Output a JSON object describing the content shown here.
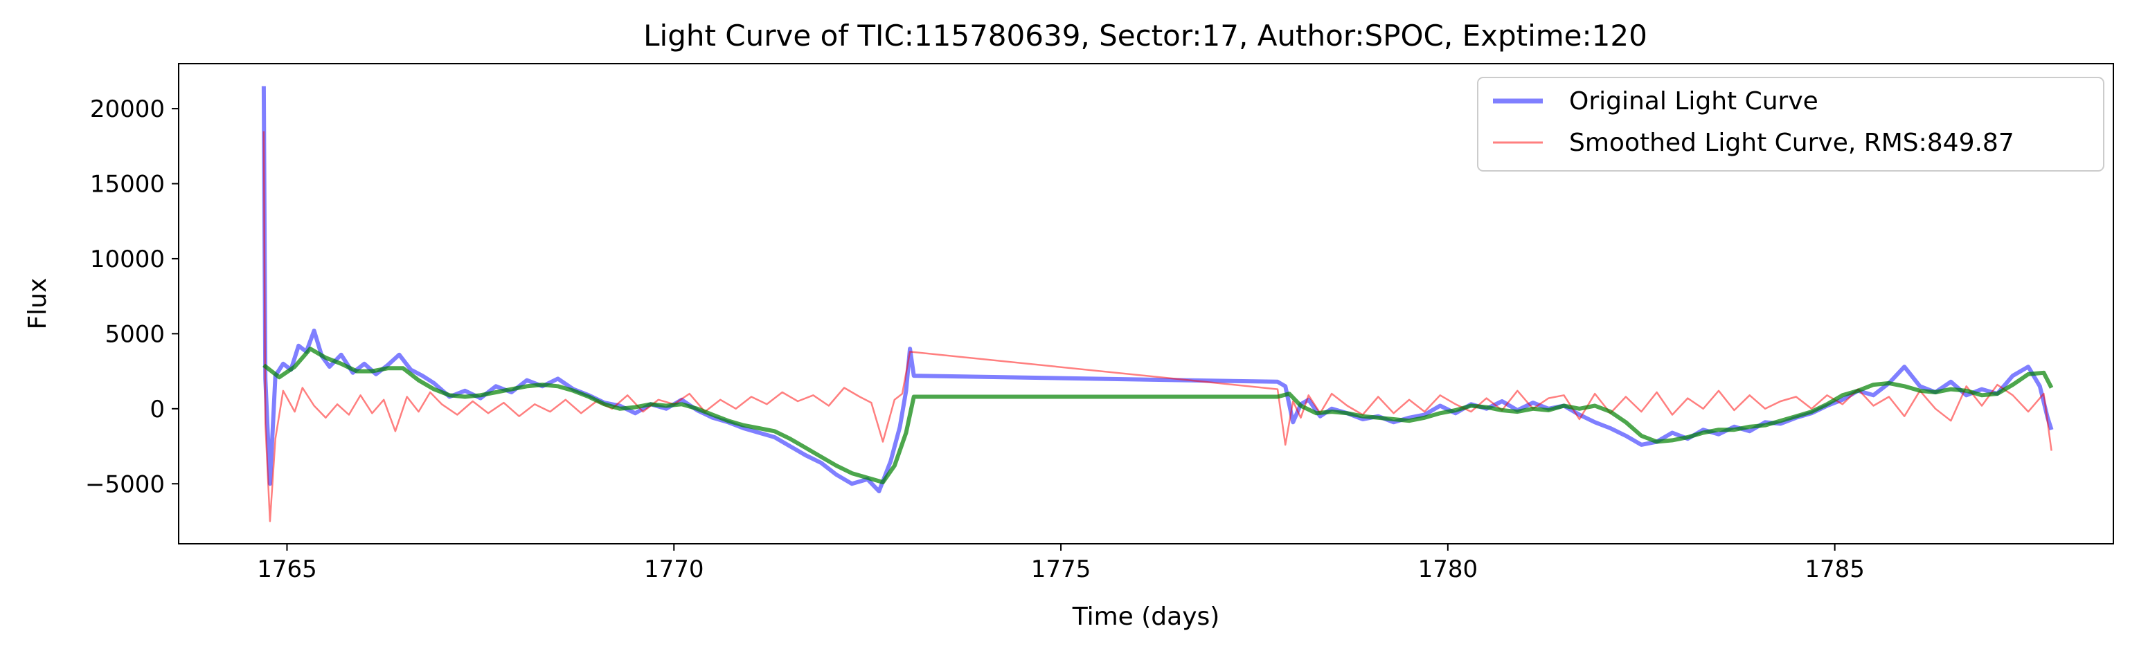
{
  "chart_data": {
    "type": "line",
    "title": "Light Curve of TIC:115780639, Sector:17, Author:SPOC, Exptime:120",
    "xlabel": "Time (days)",
    "ylabel": "Flux",
    "xlim": [
      1763.6,
      1788.6
    ],
    "ylim": [
      -9000,
      23000
    ],
    "xticks": [
      1765,
      1770,
      1775,
      1780,
      1785
    ],
    "yticks": [
      -5000,
      0,
      5000,
      10000,
      15000,
      20000
    ],
    "xtick_labels": [
      "1765",
      "1770",
      "1775",
      "1780",
      "1785"
    ],
    "ytick_labels": [
      "−5000",
      "0",
      "5000",
      "10000",
      "15000",
      "20000"
    ],
    "grid": false,
    "legend_position": "top-right",
    "series": [
      {
        "name": "Original Light Curve",
        "color": "#0000ff",
        "opacity": 0.5,
        "line_width": "thick",
        "x": [
          1764.7,
          1764.72,
          1764.78,
          1764.85,
          1764.95,
          1765.05,
          1765.15,
          1765.25,
          1765.35,
          1765.45,
          1765.55,
          1765.7,
          1765.85,
          1766.0,
          1766.15,
          1766.3,
          1766.45,
          1766.6,
          1766.75,
          1766.9,
          1767.1,
          1767.3,
          1767.5,
          1767.7,
          1767.9,
          1768.1,
          1768.3,
          1768.5,
          1768.7,
          1768.9,
          1769.1,
          1769.3,
          1769.5,
          1769.7,
          1769.9,
          1770.1,
          1770.3,
          1770.5,
          1770.7,
          1770.9,
          1771.1,
          1771.3,
          1771.5,
          1771.7,
          1771.9,
          1772.1,
          1772.3,
          1772.5,
          1772.65,
          1772.8,
          1772.92,
          1773.0,
          1773.05,
          1773.1,
          1777.8,
          1777.9,
          1778.0,
          1778.1,
          1778.2,
          1778.35,
          1778.5,
          1778.7,
          1778.9,
          1779.1,
          1779.3,
          1779.5,
          1779.7,
          1779.9,
          1780.1,
          1780.3,
          1780.5,
          1780.7,
          1780.9,
          1781.1,
          1781.3,
          1781.5,
          1781.7,
          1781.9,
          1782.1,
          1782.3,
          1782.5,
          1782.7,
          1782.9,
          1783.1,
          1783.3,
          1783.5,
          1783.7,
          1783.9,
          1784.1,
          1784.3,
          1784.5,
          1784.7,
          1784.9,
          1785.1,
          1785.3,
          1785.5,
          1785.7,
          1785.9,
          1786.1,
          1786.3,
          1786.5,
          1786.7,
          1786.9,
          1787.1,
          1787.3,
          1787.5,
          1787.65,
          1787.75,
          1787.8
        ],
        "y": [
          21500,
          2000,
          -5000,
          2200,
          3000,
          2600,
          4200,
          3800,
          5200,
          3500,
          2800,
          3600,
          2400,
          3000,
          2300,
          2900,
          3600,
          2600,
          2200,
          1700,
          800,
          1200,
          700,
          1500,
          1100,
          1900,
          1500,
          2000,
          1300,
          900,
          400,
          200,
          -300,
          300,
          0,
          600,
          -100,
          -600,
          -900,
          -1300,
          -1600,
          -1900,
          -2500,
          -3100,
          -3600,
          -4400,
          -5000,
          -4700,
          -5500,
          -3500,
          -1200,
          1200,
          4000,
          2200,
          1800,
          1500,
          -900,
          300,
          600,
          -500,
          0,
          -300,
          -700,
          -500,
          -900,
          -600,
          -400,
          200,
          -300,
          300,
          0,
          500,
          -100,
          400,
          0,
          200,
          -400,
          -900,
          -1300,
          -1800,
          -2400,
          -2200,
          -1600,
          -2000,
          -1400,
          -1700,
          -1200,
          -1500,
          -900,
          -1000,
          -600,
          -300,
          200,
          600,
          1200,
          900,
          1700,
          2800,
          1500,
          1100,
          1800,
          900,
          1300,
          1000,
          2200,
          2800,
          1500,
          -600,
          -1400
        ]
      },
      {
        "name": "Smoothed Light Curve, RMS:849.87",
        "color": "#ff0000",
        "opacity": 0.5,
        "line_width": "thin",
        "x": [
          1764.7,
          1764.72,
          1764.78,
          1764.85,
          1764.95,
          1765.1,
          1765.2,
          1765.35,
          1765.5,
          1765.65,
          1765.8,
          1765.95,
          1766.1,
          1766.25,
          1766.4,
          1766.55,
          1766.7,
          1766.85,
          1767.0,
          1767.2,
          1767.4,
          1767.6,
          1767.8,
          1768.0,
          1768.2,
          1768.4,
          1768.6,
          1768.8,
          1769.0,
          1769.2,
          1769.4,
          1769.6,
          1769.8,
          1770.0,
          1770.2,
          1770.4,
          1770.6,
          1770.8,
          1771.0,
          1771.2,
          1771.4,
          1771.6,
          1771.8,
          1772.0,
          1772.2,
          1772.4,
          1772.55,
          1772.7,
          1772.85,
          1772.95,
          1773.05,
          1777.8,
          1777.9,
          1778.0,
          1778.1,
          1778.2,
          1778.35,
          1778.5,
          1778.7,
          1778.9,
          1779.1,
          1779.3,
          1779.5,
          1779.7,
          1779.9,
          1780.1,
          1780.3,
          1780.5,
          1780.7,
          1780.9,
          1781.1,
          1781.3,
          1781.5,
          1781.7,
          1781.9,
          1782.1,
          1782.3,
          1782.5,
          1782.7,
          1782.9,
          1783.1,
          1783.3,
          1783.5,
          1783.7,
          1783.9,
          1784.1,
          1784.3,
          1784.5,
          1784.7,
          1784.9,
          1785.1,
          1785.3,
          1785.5,
          1785.7,
          1785.9,
          1786.1,
          1786.3,
          1786.5,
          1786.7,
          1786.9,
          1787.1,
          1787.3,
          1787.5,
          1787.7,
          1787.8
        ],
        "y": [
          18500,
          -1000,
          -7500,
          -2000,
          1200,
          -200,
          1400,
          200,
          -600,
          300,
          -400,
          900,
          -300,
          600,
          -1500,
          800,
          -200,
          1100,
          300,
          -400,
          500,
          -300,
          400,
          -500,
          300,
          -200,
          600,
          -300,
          500,
          0,
          900,
          -200,
          600,
          300,
          1000,
          -200,
          600,
          0,
          800,
          300,
          1100,
          500,
          900,
          200,
          1400,
          800,
          400,
          -2200,
          600,
          1000,
          3800,
          1300,
          -2400,
          500,
          -600,
          900,
          -300,
          1000,
          200,
          -400,
          800,
          -300,
          600,
          -200,
          900,
          300,
          -200,
          700,
          -100,
          1200,
          0,
          700,
          900,
          -700,
          1000,
          -300,
          800,
          -200,
          1100,
          -400,
          700,
          0,
          1200,
          -100,
          900,
          0,
          500,
          800,
          0,
          900,
          300,
          1300,
          200,
          800,
          -500,
          1200,
          0,
          -800,
          1500,
          200,
          1600,
          900,
          -200,
          1000,
          -2800
        ]
      },
      {
        "color": "#008000",
        "opacity": 0.7,
        "line_width": "thick",
        "x": [
          1764.7,
          1764.9,
          1765.1,
          1765.3,
          1765.5,
          1765.7,
          1765.9,
          1766.1,
          1766.3,
          1766.5,
          1766.7,
          1766.9,
          1767.1,
          1767.3,
          1767.5,
          1767.7,
          1767.9,
          1768.1,
          1768.3,
          1768.5,
          1768.7,
          1768.9,
          1769.1,
          1769.3,
          1769.5,
          1769.7,
          1769.9,
          1770.1,
          1770.3,
          1770.5,
          1770.7,
          1770.9,
          1771.1,
          1771.3,
          1771.5,
          1771.7,
          1771.9,
          1772.1,
          1772.3,
          1772.5,
          1772.7,
          1772.85,
          1773.0,
          1773.1,
          1777.8,
          1777.95,
          1778.1,
          1778.3,
          1778.5,
          1778.7,
          1778.9,
          1779.1,
          1779.3,
          1779.5,
          1779.7,
          1779.9,
          1780.1,
          1780.3,
          1780.5,
          1780.7,
          1780.9,
          1781.1,
          1781.3,
          1781.5,
          1781.7,
          1781.9,
          1782.1,
          1782.3,
          1782.5,
          1782.7,
          1782.9,
          1783.1,
          1783.3,
          1783.5,
          1783.7,
          1783.9,
          1784.1,
          1784.3,
          1784.5,
          1784.7,
          1784.9,
          1785.1,
          1785.3,
          1785.5,
          1785.7,
          1785.9,
          1786.1,
          1786.3,
          1786.5,
          1786.7,
          1786.9,
          1787.1,
          1787.3,
          1787.5,
          1787.7,
          1787.8
        ],
        "y": [
          2900,
          2100,
          2800,
          4000,
          3400,
          3000,
          2500,
          2500,
          2700,
          2700,
          1900,
          1300,
          900,
          800,
          900,
          1100,
          1300,
          1500,
          1600,
          1500,
          1200,
          800,
          300,
          0,
          100,
          300,
          200,
          300,
          0,
          -400,
          -800,
          -1100,
          -1300,
          -1500,
          -2000,
          -2600,
          -3200,
          -3800,
          -4300,
          -4600,
          -4900,
          -3800,
          -1600,
          800,
          800,
          1000,
          200,
          -300,
          -200,
          -300,
          -500,
          -600,
          -700,
          -800,
          -600,
          -300,
          -100,
          200,
          100,
          -100,
          -200,
          0,
          -100,
          200,
          0,
          200,
          -200,
          -900,
          -1800,
          -2200,
          -2100,
          -1900,
          -1600,
          -1400,
          -1400,
          -1200,
          -1100,
          -800,
          -500,
          -200,
          300,
          900,
          1200,
          1600,
          1700,
          1500,
          1200,
          1100,
          1300,
          1200,
          900,
          1000,
          1600,
          2300,
          2400,
          1400
        ]
      }
    ]
  }
}
